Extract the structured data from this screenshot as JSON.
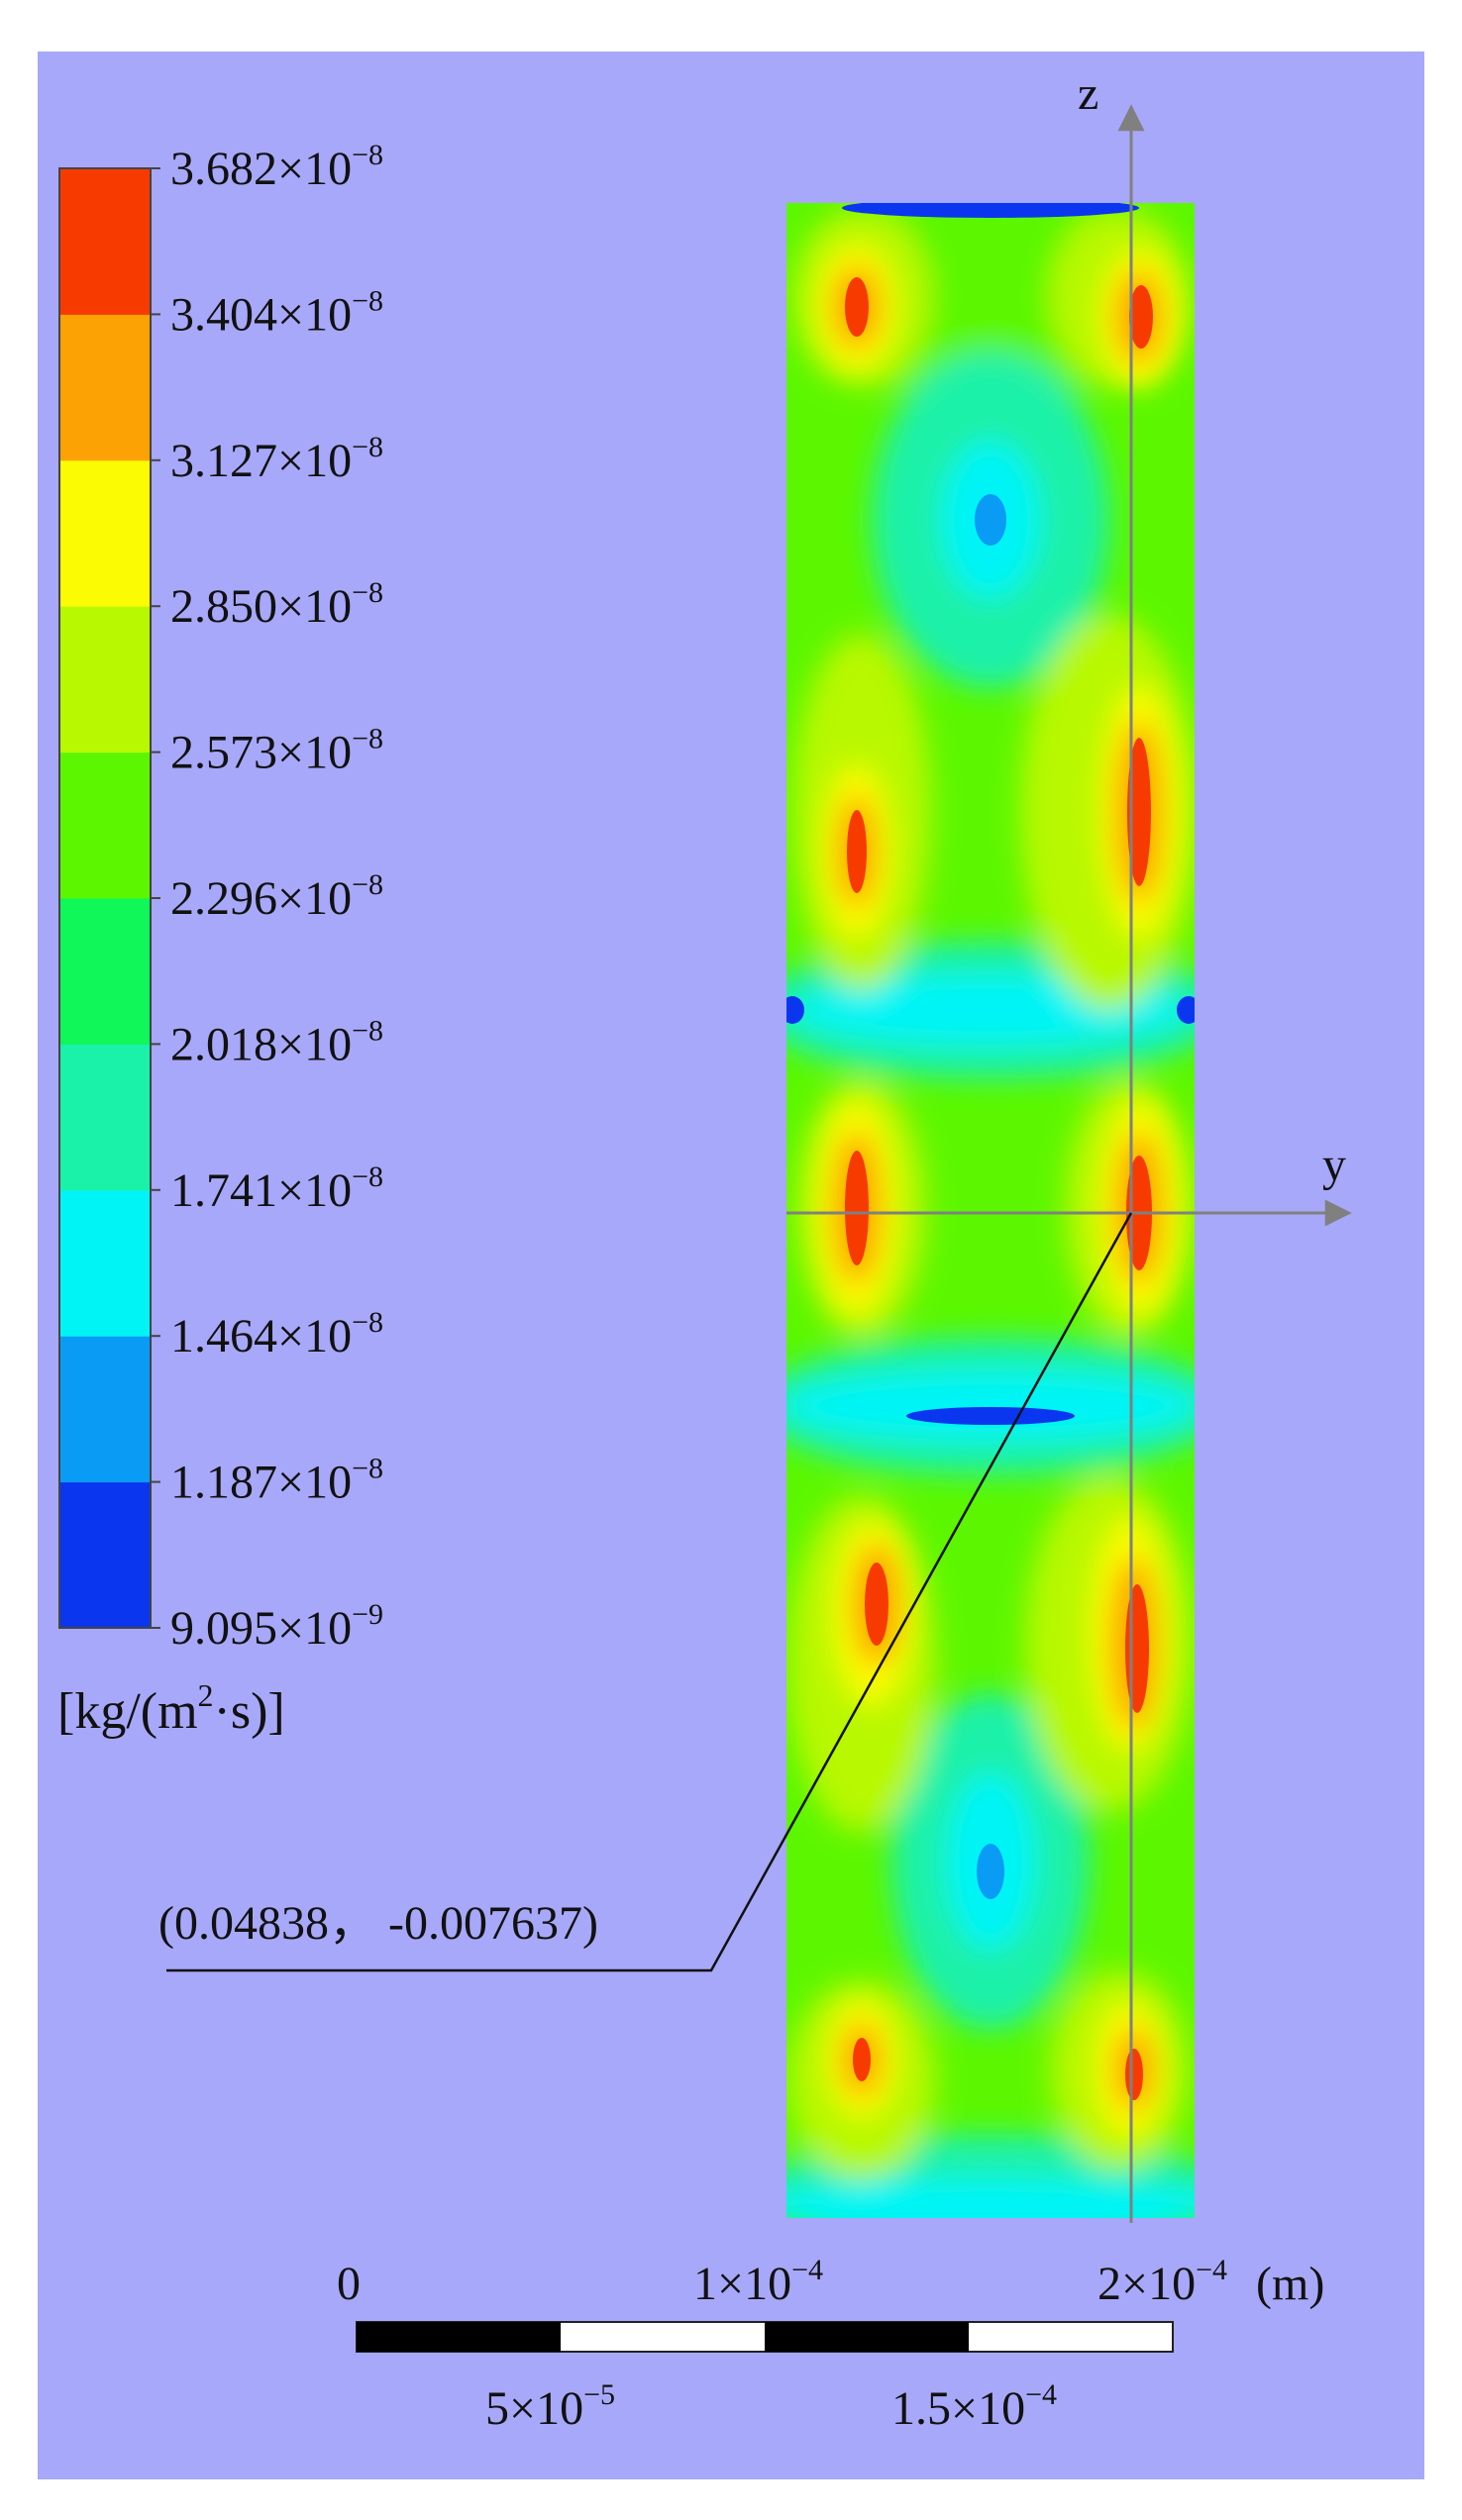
{
  "colors": {
    "background": "#a8a8fa",
    "band_colors": [
      "#0a36f0",
      "#0a9cf5",
      "#00f4f6",
      "#1af1a9",
      "#0ff758",
      "#5cf700",
      "#b8f800",
      "#fbfb04",
      "#fca204",
      "#f73b00"
    ],
    "axis_color": "#808080"
  },
  "legend": {
    "ticks": [
      {
        "mantissa": "3.682",
        "exp": "−8"
      },
      {
        "mantissa": "3.404",
        "exp": "−8"
      },
      {
        "mantissa": "3.127",
        "exp": "−8"
      },
      {
        "mantissa": "2.850",
        "exp": "−8"
      },
      {
        "mantissa": "2.573",
        "exp": "−8"
      },
      {
        "mantissa": "2.296",
        "exp": "−8"
      },
      {
        "mantissa": "2.018",
        "exp": "−8"
      },
      {
        "mantissa": "1.741",
        "exp": "−8"
      },
      {
        "mantissa": "1.464",
        "exp": "−8"
      },
      {
        "mantissa": "1.187",
        "exp": "−8"
      },
      {
        "mantissa": "9.095",
        "exp": "−9"
      }
    ],
    "unit_prefix": "[kg/(m",
    "unit_sup": "2",
    "unit_suffix": "·s)]"
  },
  "axes": {
    "z_label": "z",
    "y_label": "y"
  },
  "annotation": {
    "text": "(0.04838， -0.007637)"
  },
  "scale_bar": {
    "top_labels": [
      {
        "mantissa": "0",
        "exp": ""
      },
      {
        "mantissa": "1×10",
        "exp": "−4"
      },
      {
        "mantissa": "2×10",
        "exp": "−4"
      }
    ],
    "unit": "(m)",
    "bottom_labels": [
      {
        "mantissa": "5×10",
        "exp": "−5"
      },
      {
        "mantissa": "1.5×10",
        "exp": "−4"
      }
    ]
  }
}
